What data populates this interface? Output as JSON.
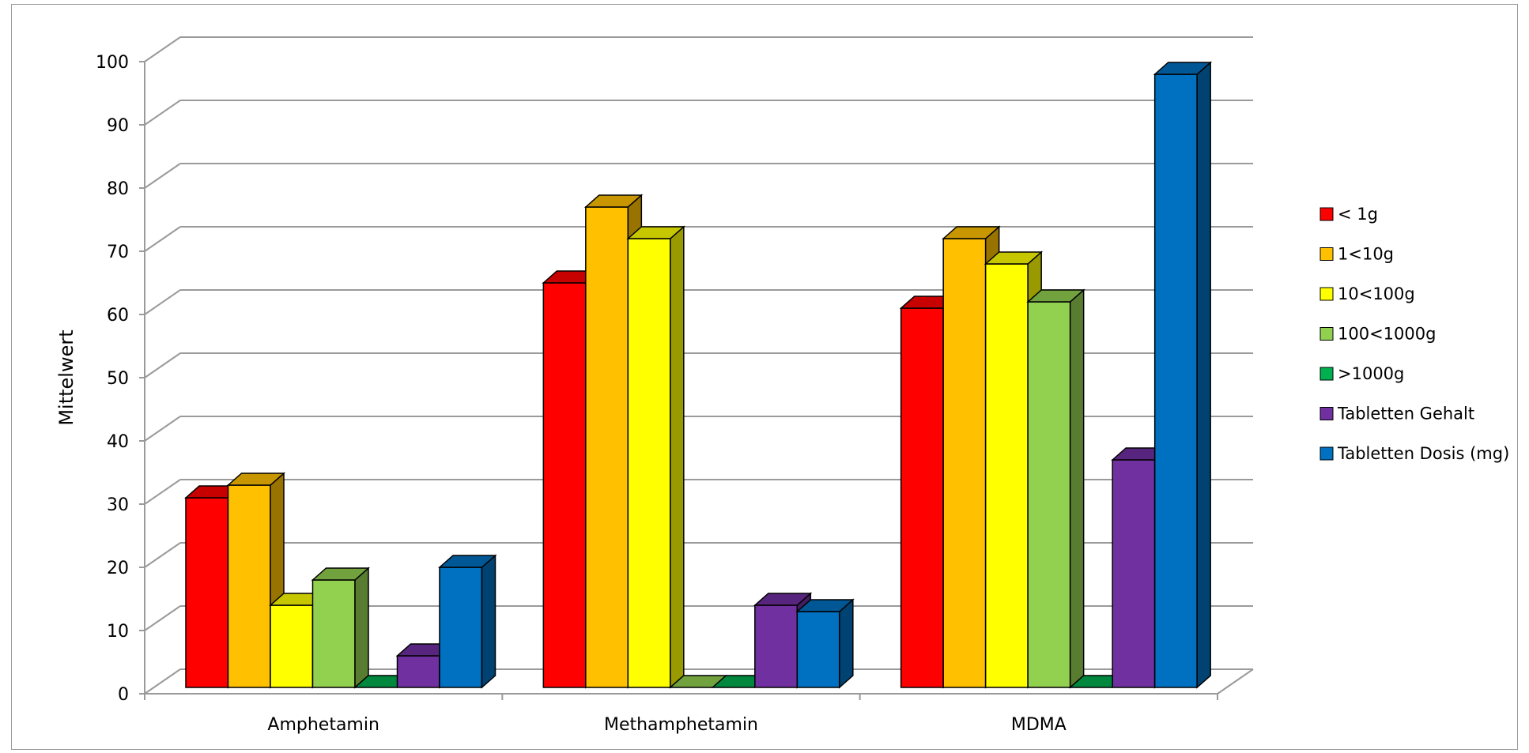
{
  "chart_data": {
    "type": "bar",
    "title": "",
    "xlabel": "",
    "ylabel": "Mittelwert",
    "ylim": [
      0,
      100
    ],
    "yticks": [
      "0",
      "10",
      "20",
      "30",
      "40",
      "50",
      "60",
      "70",
      "80",
      "90",
      "100"
    ],
    "grid": true,
    "legend_position": "right",
    "categories": [
      "Amphetamin",
      "Methamphetamin",
      "MDMA"
    ],
    "series": [
      {
        "name": "< 1g",
        "color": "#FF0000",
        "values": [
          30,
          64,
          60
        ]
      },
      {
        "name": "1<10g",
        "color": "#FFC000",
        "values": [
          32,
          76,
          71
        ]
      },
      {
        "name": "10<100g",
        "color": "#FFFF00",
        "values": [
          13,
          71,
          67
        ]
      },
      {
        "name": "100<1000g",
        "color": "#92D050",
        "values": [
          17,
          0,
          61
        ]
      },
      {
        "name": ">1000g",
        "color": "#00B050",
        "values": [
          0,
          0,
          0
        ]
      },
      {
        "name": "Tabletten Gehalt",
        "color": "#7030A0",
        "values": [
          5,
          13,
          36
        ]
      },
      {
        "name": "Tabletten Dosis (mg)",
        "color": "#0070C0",
        "values": [
          19,
          12,
          97
        ]
      }
    ]
  }
}
